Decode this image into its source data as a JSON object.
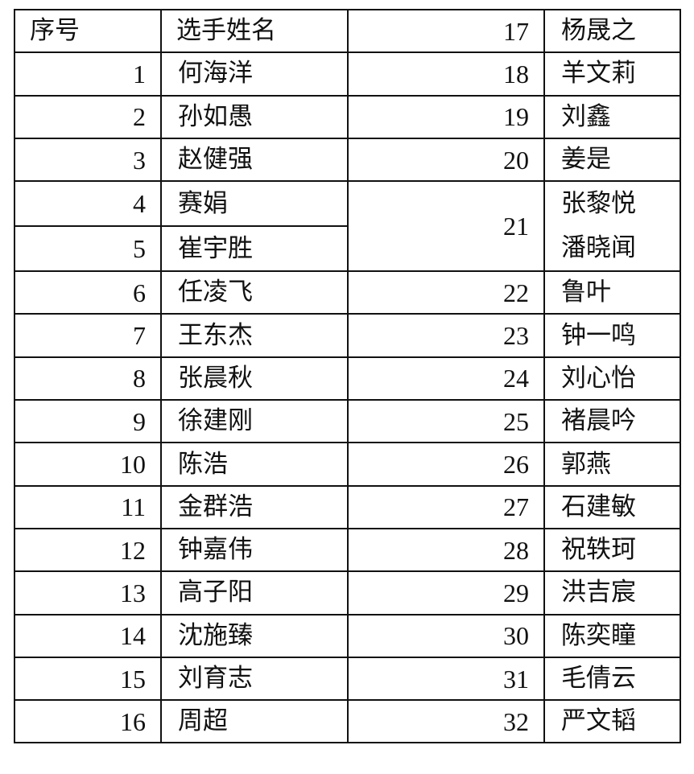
{
  "headers": {
    "number": "序号",
    "name": "选手姓名"
  },
  "left": [
    {
      "no": "1",
      "name": "何海洋"
    },
    {
      "no": "2",
      "name": "孙如愚"
    },
    {
      "no": "3",
      "name": "赵健强"
    },
    {
      "no": "4",
      "name": "赛娟"
    },
    {
      "no": "5",
      "name": "崔宇胜"
    },
    {
      "no": "6",
      "name": "任凌飞"
    },
    {
      "no": "7",
      "name": "王东杰"
    },
    {
      "no": "8",
      "name": "张晨秋"
    },
    {
      "no": "9",
      "name": "徐建刚"
    },
    {
      "no": "10",
      "name": "陈浩"
    },
    {
      "no": "11",
      "name": "金群浩"
    },
    {
      "no": "12",
      "name": "钟嘉伟"
    },
    {
      "no": "13",
      "name": "高子阳"
    },
    {
      "no": "14",
      "name": "沈施臻"
    },
    {
      "no": "15",
      "name": "刘育志"
    },
    {
      "no": "16",
      "name": "周超"
    }
  ],
  "right": [
    {
      "no": "17",
      "name": "杨晟之"
    },
    {
      "no": "18",
      "name": "羊文莉"
    },
    {
      "no": "19",
      "name": "刘鑫"
    },
    {
      "no": "20",
      "name": "姜是"
    },
    {
      "no": "21",
      "name": "张黎悦",
      "name2": "潘晓闻"
    },
    {
      "no": "22",
      "name": "鲁叶"
    },
    {
      "no": "23",
      "name": "钟一鸣"
    },
    {
      "no": "24",
      "name": "刘心怡"
    },
    {
      "no": "25",
      "name": "褚晨吟"
    },
    {
      "no": "26",
      "name": "郭燕"
    },
    {
      "no": "27",
      "name": "石建敏"
    },
    {
      "no": "28",
      "name": "祝轶珂"
    },
    {
      "no": "29",
      "name": "洪吉宸"
    },
    {
      "no": "30",
      "name": "陈奕瞳"
    },
    {
      "no": "31",
      "name": "毛倩云"
    },
    {
      "no": "32",
      "name": "严文韬"
    }
  ]
}
